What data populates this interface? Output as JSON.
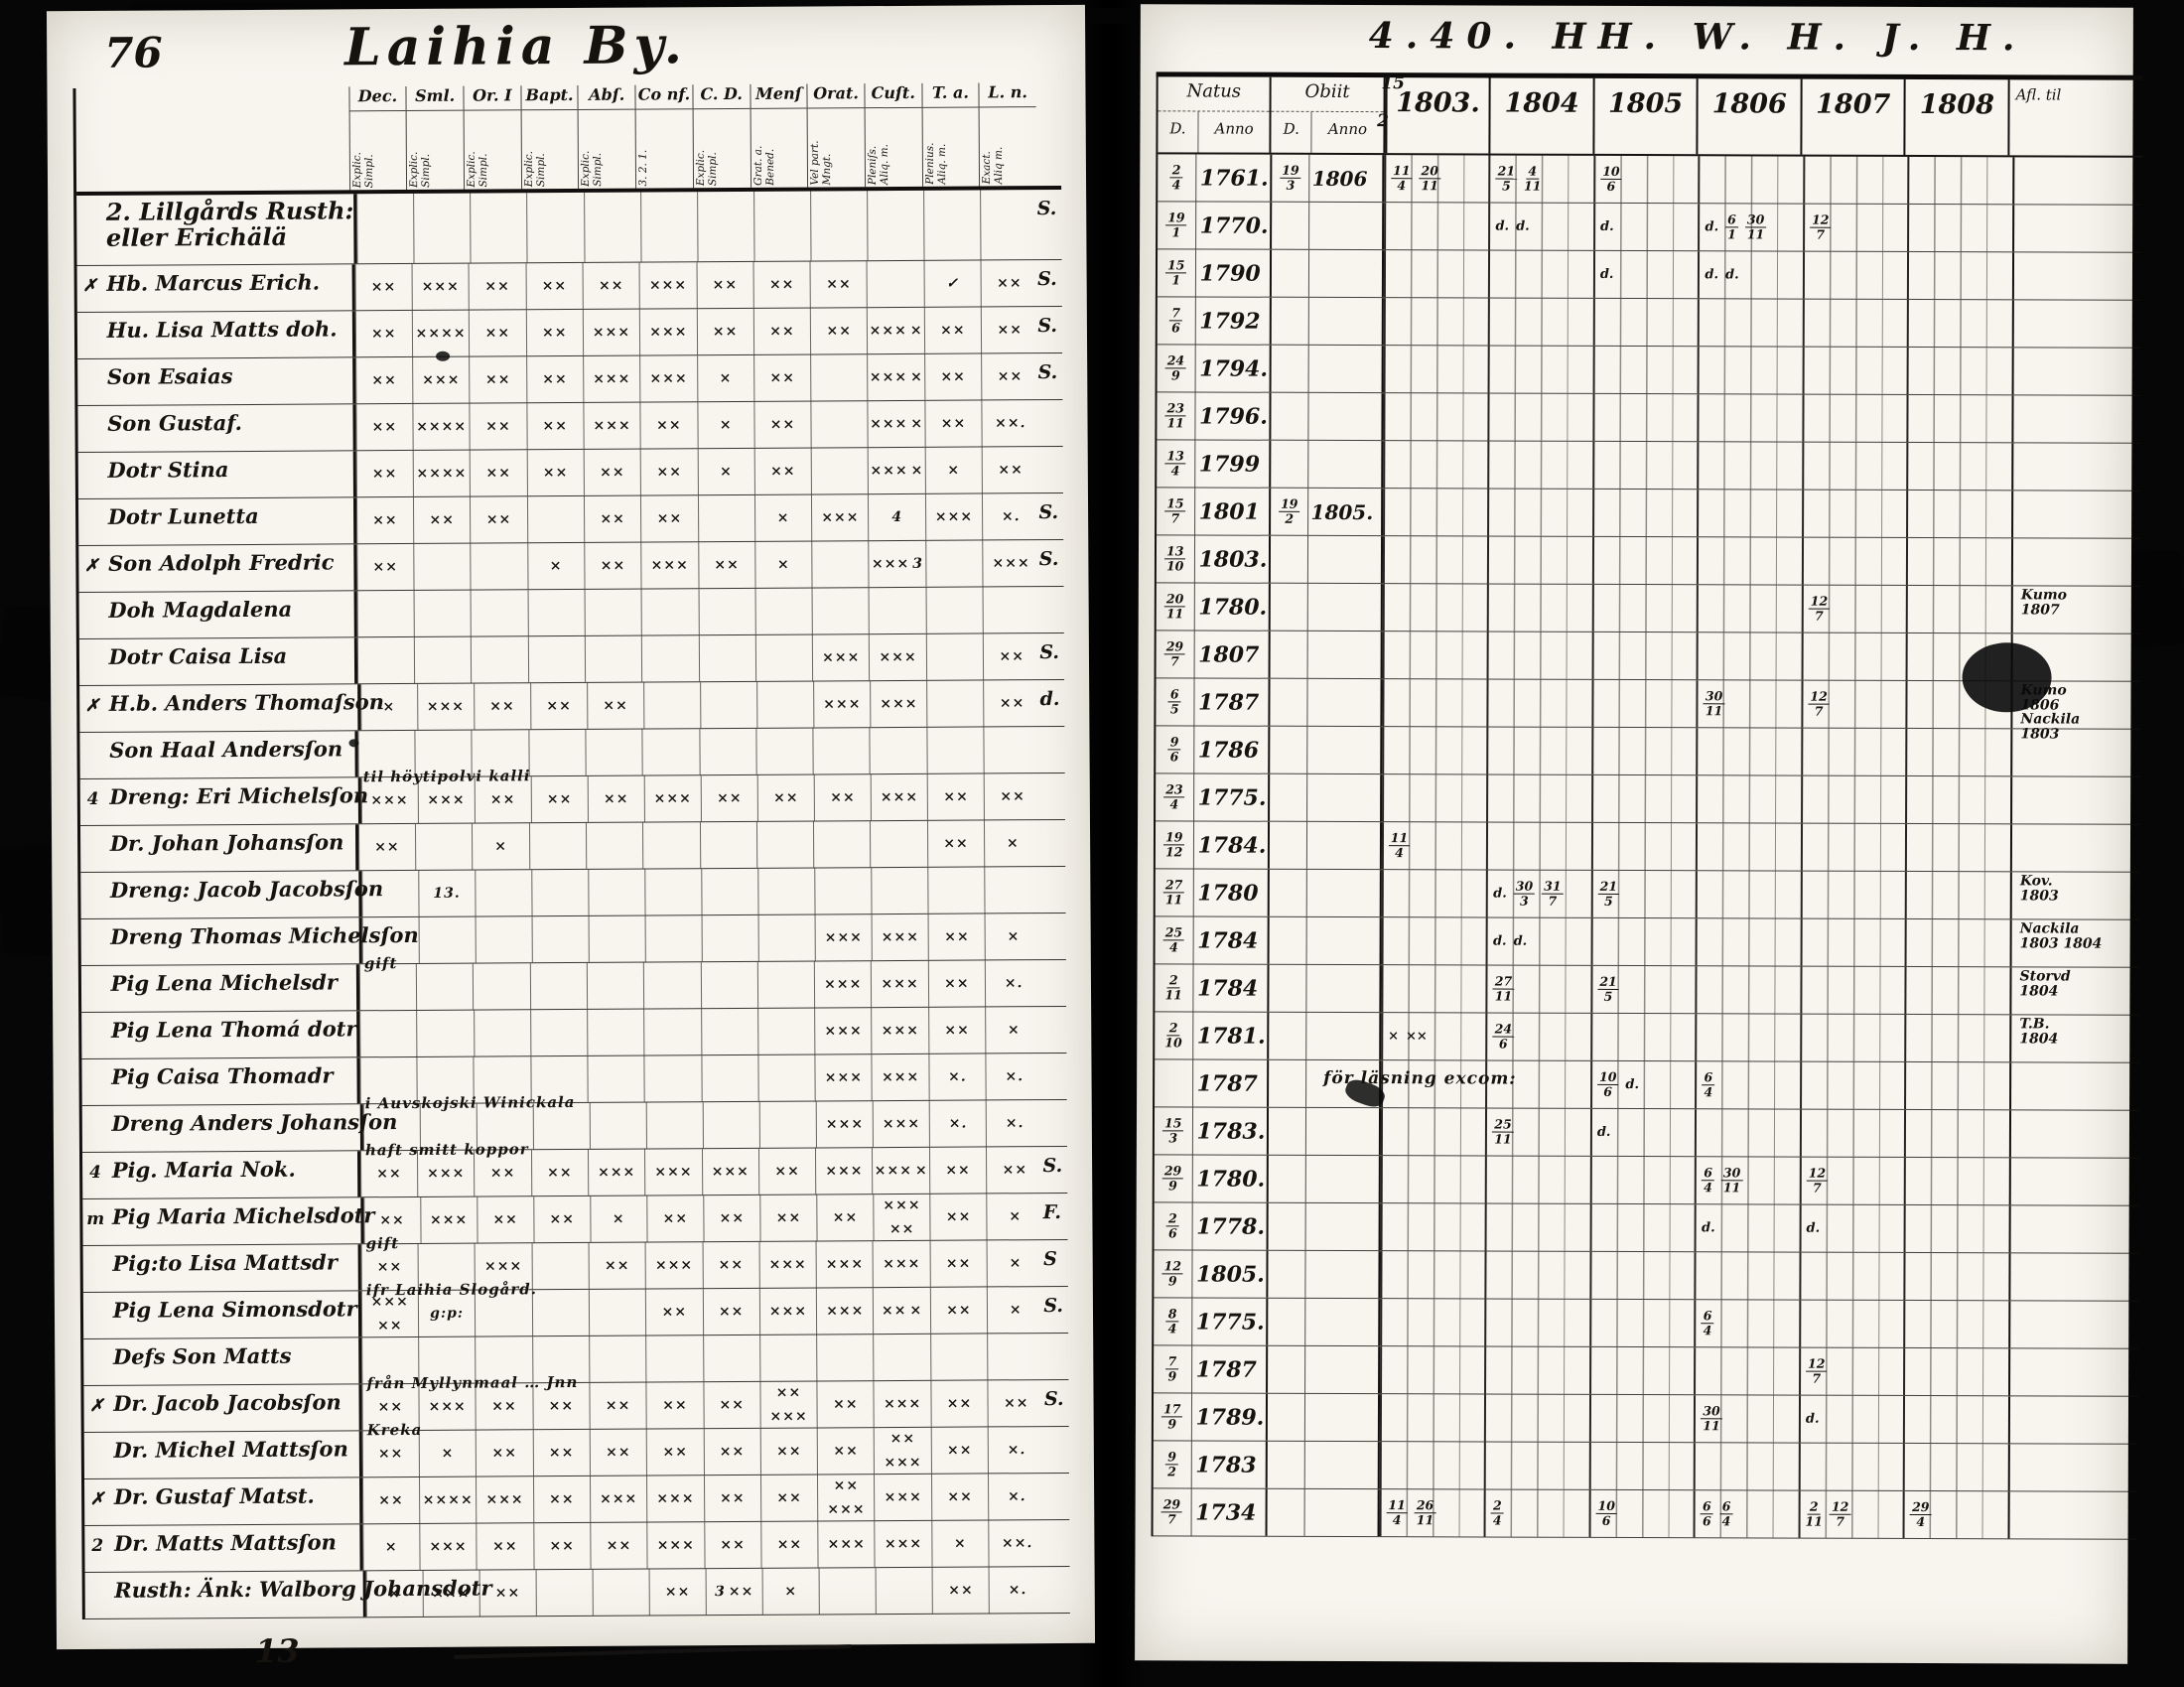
{
  "colors": {
    "paper": "#f7f5ee",
    "ink": "#16130f"
  },
  "left_page": {
    "page_number": "76",
    "title": "Laihia By.",
    "footer_number": "13",
    "columns": [
      {
        "label": "Dec.",
        "sub": "Explic.\nSimpl."
      },
      {
        "label": "Sml.",
        "sub": "Explic.\nSimpl."
      },
      {
        "label": "Or. I",
        "sub": "Explic.\nSimpl."
      },
      {
        "label": "Bapt.",
        "sub": "Explic.\nSimpl."
      },
      {
        "label": "Abſ.",
        "sub": "Explic.\nSimpl."
      },
      {
        "label": "Co nf.",
        "sub": "3.  2.  1."
      },
      {
        "label": "C. D.",
        "sub": "Explic.\nSimpl."
      },
      {
        "label": "Menſ",
        "sub": "Grat. a.\nBened."
      },
      {
        "label": "Orat.",
        "sub": "Vel part.\nMngt."
      },
      {
        "label": "Cuſt.",
        "sub": "Pleniſs.\nAliq. m."
      },
      {
        "label": "T. a.",
        "sub": "Plenius.\nAliq. m."
      },
      {
        "label": "L. n.",
        "sub": "Exact.\nAliq m."
      }
    ],
    "rows": [
      {
        "name": "2. Lillgårds Rusth:",
        "name2": "eller Erichälä",
        "tail": "S.",
        "marks": [
          "",
          "",
          "",
          "",
          "",
          "",
          "",
          "",
          "",
          "",
          "",
          ""
        ]
      },
      {
        "name": "Hb. Marcus Erich.",
        "m": "✗",
        "tail": "S.",
        "marks": [
          "××",
          "×××",
          "××",
          "××",
          "××",
          "×××",
          "××",
          "××",
          "××",
          "",
          "✓",
          "××"
        ]
      },
      {
        "name": "Hu. Lisa Matts doh.",
        "tail": "S.",
        "marks": [
          "××",
          "××××",
          "××",
          "××",
          "×××",
          "×××",
          "××",
          "××",
          "××",
          "××× ×",
          "××",
          "××"
        ]
      },
      {
        "name": "Son Esaias",
        "tail": "S.",
        "marks": [
          "××",
          "×××",
          "××",
          "××",
          "×××",
          "×××",
          "×",
          "××",
          "",
          "××× ×",
          "××",
          "××"
        ]
      },
      {
        "name": "Son Gustaf.",
        "marks": [
          "××",
          "××××",
          "××",
          "××",
          "×××",
          "××",
          "×",
          "××",
          "",
          "××× ×",
          "××",
          "××."
        ]
      },
      {
        "name": "Dotr Stina",
        "marks": [
          "××",
          "××××",
          "××",
          "××",
          "××",
          "××",
          "×",
          "××",
          "",
          "××× ×",
          "×",
          "××"
        ]
      },
      {
        "name": "Dotr Lunetta",
        "tail": "S.",
        "marks": [
          "××",
          "××",
          "××",
          "",
          "××",
          "××",
          "",
          "×",
          "×××",
          "4",
          "×××",
          "×."
        ]
      },
      {
        "name": "Son Adolph Fredric",
        "m": "✗",
        "tail": "S.",
        "marks": [
          "××",
          "",
          "",
          "×",
          "××",
          "×××",
          "××",
          "×",
          "",
          "××× 3",
          "",
          "×××"
        ]
      },
      {
        "name": "Doh Magdalena",
        "marks": [
          "",
          "",
          "",
          "",
          "",
          "",
          "",
          "",
          "",
          "",
          "",
          ""
        ]
      },
      {
        "name": "Dotr Caisa Lisa",
        "tail": "S.",
        "marks": [
          "",
          "",
          "",
          "",
          "",
          "",
          "",
          "",
          "×××",
          "×××",
          "",
          "××"
        ]
      },
      {
        "name": "H.b. Anders Thomaſson",
        "m": "✗",
        "tail": "d.",
        "marks": [
          "×",
          "×××",
          "××",
          "××",
          "××",
          "",
          "",
          "",
          "×××",
          "×××",
          "",
          "××"
        ]
      },
      {
        "name": "Son Haal Andersſon",
        "marks": [
          "",
          "",
          "",
          "",
          "",
          "",
          "",
          "",
          "",
          "",
          "",
          ""
        ]
      },
      {
        "name": "Dreng: Eri Michelsſon",
        "m": "4",
        "note": "til höytipolvi kalli",
        "marks": [
          "×××",
          "×××",
          "××",
          "××",
          "××",
          "×××",
          "××",
          "××",
          "××",
          "×××",
          "××",
          "××"
        ]
      },
      {
        "name": "Dr. Johan Johansſon",
        "marks": [
          "××",
          "",
          "×",
          "",
          "",
          "",
          "",
          "",
          "",
          "",
          "××",
          "×"
        ]
      },
      {
        "name": "Dreng: Jacob Jacobsſon",
        "marks": [
          "",
          "13.",
          "",
          "",
          "",
          "",
          "",
          "",
          "",
          "",
          "",
          ""
        ]
      },
      {
        "name": "Dreng Thomas Michelsſon",
        "marks": [
          "",
          "",
          "",
          "",
          "",
          "",
          "",
          "",
          "×××",
          "×××",
          "××",
          "×"
        ]
      },
      {
        "name": "Pig Lena Michelsdr",
        "note": "gift",
        "marks": [
          "",
          "",
          "",
          "",
          "",
          "",
          "",
          "",
          "×××",
          "×××",
          "××",
          "×."
        ]
      },
      {
        "name": "Pig Lena Thomá dotr",
        "marks": [
          "",
          "",
          "",
          "",
          "",
          "",
          "",
          "",
          "×××",
          "×××",
          "××",
          "×"
        ]
      },
      {
        "name": "Pig Caisa Thomadr",
        "marks": [
          "",
          "",
          "",
          "",
          "",
          "",
          "",
          "",
          "×××",
          "×××",
          "×.",
          "×."
        ]
      },
      {
        "name": "Dreng Anders Johansſon",
        "note": "i Auvskojski Winickala",
        "marks": [
          "",
          "",
          "",
          "",
          "",
          "",
          "",
          "",
          "×××",
          "×××",
          "×.",
          "×."
        ]
      },
      {
        "name": "Pig. Maria Nok.",
        "m": "4",
        "note": "haft smitt koppor",
        "tail": "S.",
        "marks": [
          "××",
          "×××",
          "××",
          "××",
          "×××",
          "×××",
          "×××",
          "××",
          "×××",
          "××× ×",
          "××",
          "××"
        ]
      },
      {
        "name": "Pig Maria Michelsdotr",
        "m": "m",
        "tail": "F.",
        "marks": [
          "××",
          "×××",
          "××",
          "××",
          "×",
          "××",
          "××",
          "××",
          "××",
          "××× ××",
          "××",
          "×"
        ]
      },
      {
        "name": "Pig:to Lisa Mattsdr",
        "note": "gift",
        "tail": "S",
        "marks": [
          "××",
          "",
          "×××",
          "",
          "××",
          "×××",
          "××",
          "×××",
          "×××",
          "×××",
          "××",
          "×"
        ]
      },
      {
        "name": "Pig Lena Simonsdotr",
        "note": "ifr Laihia Slogård.",
        "tail": "S.",
        "marks": [
          "××× ××",
          "g:p:",
          "",
          "",
          "",
          "××",
          "××",
          "×××",
          "×××",
          "×× ×",
          "××",
          "×"
        ]
      },
      {
        "name": "Defs Son Matts",
        "marks": [
          "",
          "",
          "",
          "",
          "",
          "",
          "",
          "",
          "",
          "",
          "",
          ""
        ]
      },
      {
        "name": "Dr. Jacob Jacobsſon",
        "m": "✗",
        "note": "från Myllynmaal … Jnn",
        "tail": "S.",
        "marks": [
          "××",
          "×××",
          "××",
          "××",
          "××",
          "××",
          "××",
          "×× ×××",
          "××",
          "×××",
          "××",
          "××"
        ]
      },
      {
        "name": "Dr. Michel Mattsſon",
        "note": "Kreka",
        "marks": [
          "××",
          "×",
          "××",
          "××",
          "××",
          "××",
          "××",
          "××",
          "××",
          "×× ×××",
          "××",
          "×."
        ]
      },
      {
        "name": "Dr. Gustaf Matst.",
        "m": "✗",
        "marks": [
          "××",
          "××××",
          "×××",
          "××",
          "×××",
          "×××",
          "××",
          "××",
          "×× ×××",
          "×××",
          "××",
          "×."
        ]
      },
      {
        "name": "Dr. Matts Mattsſon",
        "m": "2",
        "marks": [
          "×",
          "×××",
          "××",
          "××",
          "××",
          "×××",
          "××",
          "××",
          "×××",
          "×××",
          "×",
          "××."
        ]
      },
      {
        "name": "Rusth: Änk: Walborg Johansdotr",
        "marks": [
          "×",
          "×××",
          "××",
          "",
          "",
          "××",
          "3 ××",
          "×",
          "",
          "",
          "××",
          "×."
        ]
      }
    ]
  },
  "right_page": {
    "handwritten_header": "4.40.  HH.  W.  H.  J.  H.",
    "natus_label": "Natus",
    "obiit_label": "Obiit",
    "d_label": "D.",
    "anno_label": "Anno",
    "years": [
      "1803.",
      "1804",
      "1805",
      "1806",
      "1807",
      "1808"
    ],
    "year_overlay_top": "15",
    "year_overlay_bottom": "2",
    "anm_label": "Afl. til",
    "rows": [
      {
        "nd": "2/4",
        "na": "1761.",
        "od": "19/3",
        "oa": "1806",
        "y": {
          "1803.": "11/4 20/11",
          "1804": "21/5 4/11",
          "1805": "10/6"
        }
      },
      {
        "nd": "19/1",
        "na": "1770.",
        "y": {
          "1804": "d. d.",
          "1805": "d.",
          "1806": "d. 6/1 30/11",
          "1807": "12/7"
        }
      },
      {
        "nd": "15/1",
        "na": "1790",
        "y": {
          "1805": "d.",
          "1806": "d. d."
        }
      },
      {
        "nd": "7/6",
        "na": "1792"
      },
      {
        "nd": "24/9",
        "na": "1794."
      },
      {
        "nd": "23/11",
        "na": "1796."
      },
      {
        "nd": "13/4",
        "na": "1799"
      },
      {
        "nd": "15/7",
        "na": "1801",
        "od": "19/2",
        "oa": "1805."
      },
      {
        "nd": "13/10",
        "na": "1803."
      },
      {
        "nd": "20/11",
        "na": "1780.",
        "y": {
          "1807": "12/7"
        },
        "anm": "Kumo\n1807"
      },
      {
        "nd": "29/7",
        "na": "1807"
      },
      {
        "nd": "6/5",
        "na": "1787",
        "y": {
          "1806": "30/11",
          "1807": "12/7"
        },
        "anm": "Kumo\n1806\nNackila\n1803"
      },
      {
        "nd": "9/6",
        "na": "1786"
      },
      {
        "nd": "23/4",
        "na": "1775."
      },
      {
        "nd": "19/12",
        "na": "1784.",
        "y": {
          "1803.": "11/4"
        }
      },
      {
        "nd": "27/11",
        "na": "1780",
        "y": {
          "1804": "d. 30/3 31/7",
          "1805": "21/5"
        },
        "anm": "Kov.\n1803"
      },
      {
        "nd": "25/4",
        "na": "1784",
        "y": {
          "1804": "d. d."
        },
        "anm": "Nackila\n1803 1804"
      },
      {
        "nd": "2/11",
        "na": "1784",
        "y": {
          "1804": "27/11",
          "1805": "21/5"
        },
        "anm": "Storvd\n1804"
      },
      {
        "nd": "2/10",
        "na": "1781.",
        "y": {
          "1803.": "× ××",
          "1804": "24/6"
        },
        "anm": "T.B.\n1804"
      },
      {
        "na": "1787",
        "note": "för läsning excom:",
        "y": {
          "1805": "10/6 d.",
          "1806": "6/4"
        }
      },
      {
        "nd": "15/3",
        "na": "1783.",
        "y": {
          "1804": "25/11",
          "1805": "d."
        }
      },
      {
        "nd": "29/9",
        "na": "1780.",
        "y": {
          "1806": "6/4 30/11",
          "1807": "12/7"
        }
      },
      {
        "nd": "2/6",
        "na": "1778.",
        "y": {
          "1806": "d.",
          "1807": "d."
        }
      },
      {
        "nd": "12/9",
        "na": "1805."
      },
      {
        "nd": "8/4",
        "na": "1775.",
        "y": {
          "1806": "6/4"
        }
      },
      {
        "nd": "7/9",
        "na": "1787",
        "y": {
          "1807": "12/7"
        }
      },
      {
        "nd": "17/9",
        "na": "1789.",
        "y": {
          "1806": "30/11",
          "1807": "d."
        }
      },
      {
        "nd": "9/2",
        "na": "1783"
      },
      {
        "nd": "29/7",
        "na": "1734",
        "y": {
          "1803.": "11/4 26/11",
          "1804": "2/4",
          "1805": "10/6",
          "1806": "6/6 6/4",
          "1807": "2/11 12/7",
          "1808": "29/4"
        }
      }
    ]
  }
}
